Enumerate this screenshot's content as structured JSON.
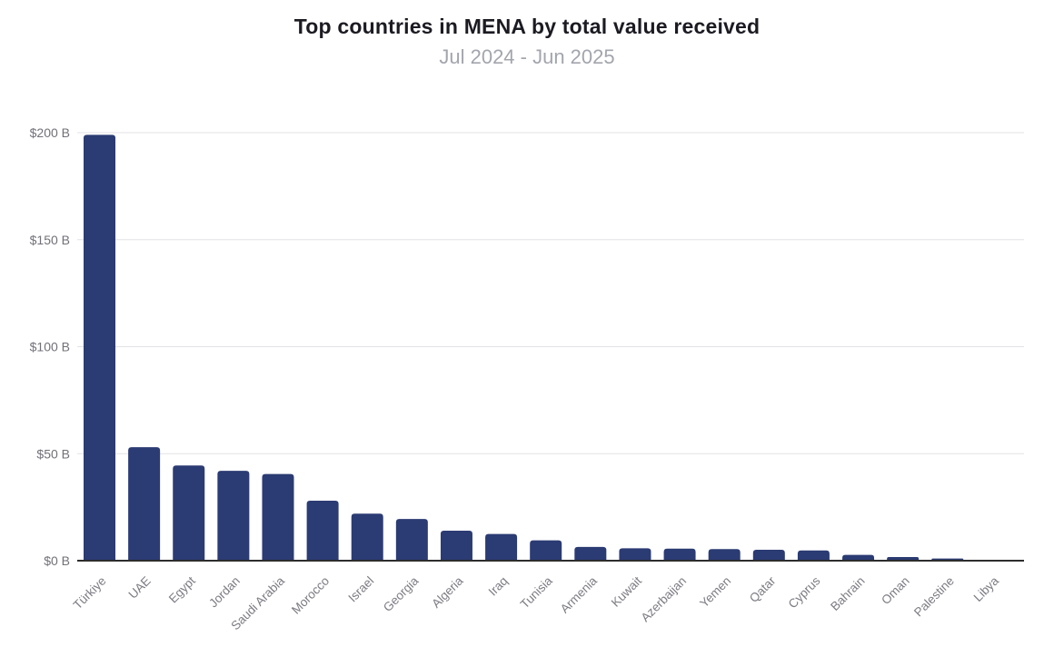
{
  "header": {
    "title": "Top countries in MENA by total value received",
    "subtitle": "Jul 2024 - Jun 2025"
  },
  "chart_data": {
    "type": "bar",
    "title": "Top countries in MENA by total value received",
    "subtitle": "Jul 2024 - Jun 2025",
    "categories": [
      "Türkiye",
      "UAE",
      "Egypt",
      "Jordan",
      "Saudi Arabia",
      "Morocco",
      "Israel",
      "Georgia",
      "Algeria",
      "Iraq",
      "Tunisia",
      "Armenia",
      "Kuwait",
      "Azerbaijan",
      "Yemen",
      "Qatar",
      "Cyprus",
      "Bahrain",
      "Oman",
      "Palestine",
      "Libya"
    ],
    "values": [
      199,
      53,
      44.5,
      42,
      40.5,
      28,
      22,
      19.5,
      14,
      12.5,
      9.5,
      6.4,
      5.8,
      5.6,
      5.4,
      5.1,
      4.8,
      2.7,
      1.7,
      1.0,
      0.15
    ],
    "value_unit": "billions USD",
    "xlabel": "",
    "ylabel": "",
    "ylim": [
      0,
      200
    ],
    "y_ticks": [
      0,
      50,
      100,
      150,
      200
    ],
    "y_tick_labels": [
      "$0 B",
      "$50 B",
      "$100 B",
      "$150 B",
      "$200 B"
    ],
    "grid": true,
    "legend": false,
    "bar_color": "#2b3b73",
    "grid_color": "#e3e3e7",
    "axis_color": "#2d2d2d",
    "tick_label_color": "#717179",
    "x_label_color": "#7b7b83",
    "title_color": "#1b1b22",
    "subtitle_color": "#a3a5ad"
  }
}
